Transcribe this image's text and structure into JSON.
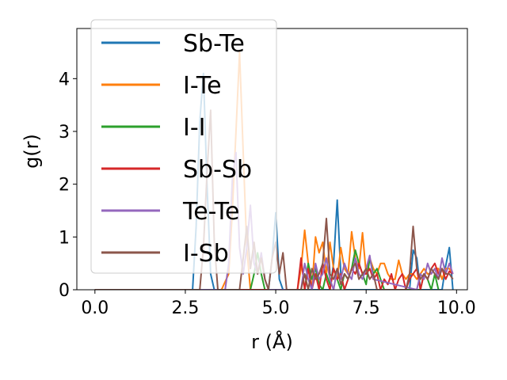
{
  "chart_data": {
    "type": "line",
    "xlabel": "r (Å)",
    "ylabel": "g(r)",
    "xlim": [
      -0.5,
      10.3
    ],
    "ylim": [
      0,
      4.95
    ],
    "xticks": [
      0.0,
      2.5,
      5.0,
      7.5,
      10.0
    ],
    "xtick_labels": [
      "0.0",
      "2.5",
      "5.0",
      "7.5",
      "10.0"
    ],
    "yticks": [
      0,
      1,
      2,
      3,
      4
    ],
    "ytick_labels": [
      "0",
      "1",
      "2",
      "3",
      "4"
    ],
    "grid": false,
    "legend_position": "upper-left",
    "series": [
      {
        "name": "Sb-Te",
        "color": "#1f77b4",
        "x": [
          0.0,
          2.7,
          2.8,
          2.9,
          3.0,
          3.1,
          3.2,
          3.3,
          4.8,
          4.9,
          5.0,
          5.1,
          5.2,
          6.5,
          6.6,
          6.7,
          6.8,
          6.9,
          8.7,
          8.8,
          8.9,
          9.0,
          9.6,
          9.7,
          9.8,
          9.9
        ],
        "y": [
          0.0,
          0.0,
          1.2,
          3.2,
          4.1,
          2.0,
          0.3,
          0.0,
          0.0,
          0.6,
          1.46,
          0.2,
          0.0,
          0.0,
          0.5,
          1.7,
          0.3,
          0.0,
          0.0,
          0.75,
          0.6,
          0.0,
          0.0,
          0.45,
          0.8,
          0.0
        ]
      },
      {
        "name": "I-Te",
        "color": "#ff7f0e",
        "x": [
          0.0,
          3.5,
          3.7,
          3.8,
          3.9,
          4.0,
          4.1,
          4.2,
          4.3,
          5.6,
          5.7,
          5.8,
          5.9,
          6.0,
          6.1,
          6.2,
          6.3,
          6.4,
          6.5,
          6.6,
          6.7,
          6.8,
          6.9,
          7.0,
          7.1,
          7.2,
          7.3,
          7.4,
          7.5,
          7.6,
          7.7,
          7.8,
          7.9,
          8.0,
          8.1,
          8.2,
          8.3,
          8.4,
          8.5,
          8.6,
          8.7,
          8.8,
          8.9,
          9.0,
          9.1,
          9.2,
          9.3,
          9.4,
          9.5,
          9.6,
          9.7,
          9.8,
          9.9
        ],
        "y": [
          0.0,
          0.0,
          0.3,
          1.5,
          3.0,
          4.5,
          2.6,
          0.8,
          0.0,
          0.0,
          0.4,
          1.13,
          0.5,
          0.0,
          1.0,
          0.7,
          0.9,
          0.3,
          0.9,
          0.4,
          0.2,
          0.8,
          0.4,
          0.3,
          1.1,
          0.6,
          0.4,
          1.08,
          0.3,
          0.6,
          0.4,
          0.3,
          0.5,
          0.5,
          0.3,
          0.2,
          0.2,
          0.56,
          0.3,
          0.2,
          0.3,
          0.3,
          0.2,
          0.3,
          0.4,
          0.3,
          0.3,
          0.4,
          0.4,
          0.2,
          0.4,
          0.4,
          0.3
        ]
      },
      {
        "name": "I-I",
        "color": "#2ca02c",
        "x": [
          0.0,
          4.3,
          4.4,
          4.5,
          4.6,
          4.7,
          5.8,
          5.9,
          6.0,
          6.1,
          6.2,
          6.3,
          6.4,
          6.5,
          6.6,
          6.7,
          6.8,
          6.9,
          7.0,
          7.1,
          7.2,
          7.3,
          7.4,
          7.5,
          7.6,
          7.7,
          7.8,
          7.9,
          8.0,
          9.0,
          9.1,
          9.2,
          9.3,
          9.4,
          9.5
        ],
        "y": [
          0.0,
          0.0,
          0.3,
          0.7,
          0.3,
          0.0,
          0.0,
          0.5,
          0.2,
          0.4,
          0.1,
          0.0,
          0.3,
          0.1,
          0.4,
          0.2,
          0.0,
          0.3,
          0.2,
          0.4,
          0.75,
          0.5,
          0.3,
          0.1,
          0.6,
          0.3,
          0.4,
          0.2,
          0.0,
          0.0,
          0.3,
          0.2,
          0.0,
          0.3,
          0.0
        ]
      },
      {
        "name": "Sb-Sb",
        "color": "#d62728",
        "x": [
          0.0,
          5.6,
          5.7,
          5.8,
          5.9,
          6.0,
          6.1,
          6.2,
          6.3,
          6.4,
          6.5,
          6.6,
          6.7,
          6.8,
          6.9,
          7.0,
          7.1,
          7.2,
          7.3,
          7.4,
          7.5,
          7.6,
          7.7,
          7.8,
          7.9,
          8.0,
          8.1,
          8.2,
          8.3,
          8.4,
          8.5,
          8.6,
          8.7,
          8.8,
          8.9,
          9.0,
          9.1,
          9.2,
          9.3,
          9.4,
          9.5,
          9.6,
          9.7,
          9.8,
          9.9
        ],
        "y": [
          0.0,
          0.0,
          0.6,
          0.0,
          0.4,
          0.0,
          0.3,
          0.0,
          0.5,
          0.2,
          0.0,
          0.4,
          0.2,
          0.3,
          0.0,
          0.2,
          0.4,
          0.3,
          0.5,
          0.3,
          0.3,
          0.4,
          0.2,
          0.3,
          0.0,
          0.2,
          0.1,
          0.3,
          0.0,
          0.2,
          0.3,
          0.0,
          0.2,
          0.3,
          0.4,
          0.0,
          0.3,
          0.2,
          0.4,
          0.5,
          0.3,
          0.4,
          0.2,
          0.35,
          0.3
        ]
      },
      {
        "name": "Te-Te",
        "color": "#9467bd",
        "x": [
          0.0,
          3.6,
          3.7,
          3.8,
          3.9,
          4.0,
          4.1,
          4.2,
          4.3,
          4.4,
          4.5,
          4.6,
          4.7,
          4.8,
          5.7,
          5.8,
          5.9,
          6.0,
          6.1,
          6.2,
          6.3,
          6.4,
          6.5,
          6.6,
          6.7,
          6.8,
          6.9,
          7.0,
          7.1,
          7.2,
          7.3,
          7.4,
          7.5,
          7.6,
          7.7,
          8.9,
          9.0,
          9.1,
          9.2,
          9.3,
          9.4,
          9.5,
          9.6,
          9.7,
          9.8,
          9.9
        ],
        "y": [
          0.0,
          0.0,
          0.5,
          2.1,
          2.6,
          0.8,
          0.3,
          0.8,
          1.6,
          0.5,
          0.3,
          0.7,
          0.2,
          0.0,
          0.0,
          0.5,
          0.2,
          0.0,
          0.5,
          0.2,
          0.3,
          0.6,
          0.2,
          0.0,
          0.4,
          0.2,
          0.5,
          0.3,
          0.2,
          0.6,
          0.3,
          0.2,
          0.4,
          0.65,
          0.2,
          0.0,
          0.3,
          0.2,
          0.5,
          0.3,
          0.4,
          0.2,
          0.6,
          0.3,
          0.5,
          0.3
        ]
      },
      {
        "name": "I-Sb",
        "color": "#8c564b",
        "x": [
          0.0,
          2.9,
          3.0,
          3.1,
          3.2,
          3.3,
          3.4,
          4.0,
          4.1,
          4.2,
          4.3,
          4.4,
          4.5,
          4.6,
          4.7,
          4.8,
          4.9,
          5.0,
          5.1,
          5.2,
          5.3,
          5.7,
          5.8,
          5.9,
          6.0,
          6.1,
          6.2,
          6.3,
          6.4,
          6.5,
          6.6,
          6.7,
          6.8,
          6.9,
          7.0,
          7.1,
          7.2,
          7.3,
          7.4,
          7.5,
          7.6,
          7.7,
          7.8,
          8.6,
          8.7,
          8.8,
          8.9,
          9.0,
          9.1,
          9.2,
          9.3,
          9.4,
          9.5,
          9.6,
          9.7,
          9.8,
          9.9
        ],
        "y": [
          0.0,
          0.0,
          0.8,
          2.2,
          3.4,
          0.9,
          0.0,
          0.0,
          0.6,
          1.2,
          0.4,
          0.9,
          0.3,
          0.6,
          0.2,
          0.0,
          0.6,
          0.9,
          0.3,
          0.7,
          0.0,
          0.0,
          0.3,
          0.0,
          0.4,
          0.2,
          0.3,
          0.5,
          1.35,
          0.3,
          0.2,
          0.4,
          0.1,
          0.3,
          0.2,
          0.4,
          0.5,
          0.2,
          0.3,
          0.4,
          0.2,
          0.3,
          0.0,
          0.0,
          0.3,
          1.2,
          0.4,
          0.2,
          0.3,
          0.2,
          0.4,
          0.3,
          0.2,
          0.4,
          0.3,
          0.3,
          0.2
        ]
      }
    ]
  }
}
